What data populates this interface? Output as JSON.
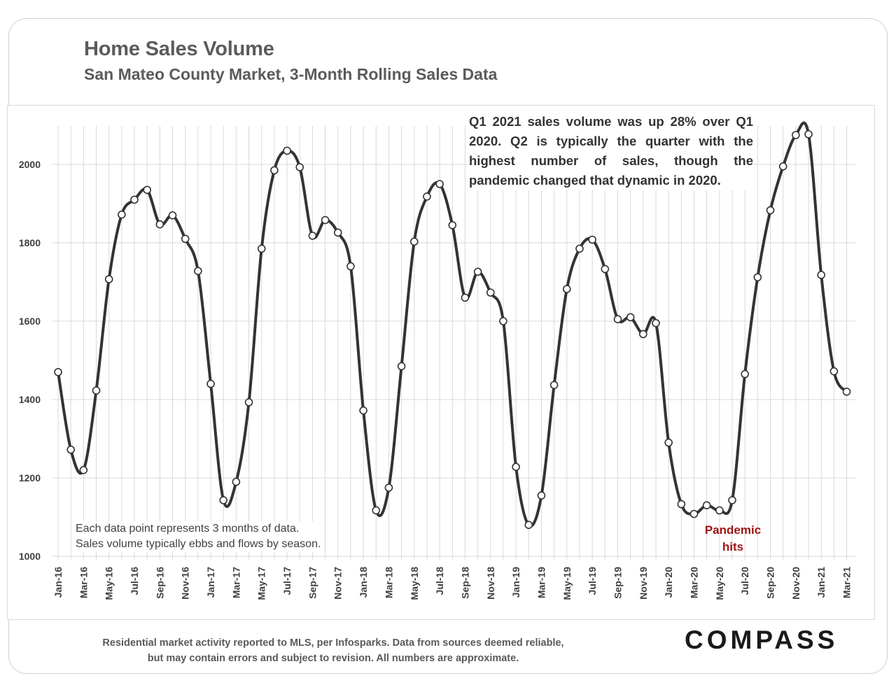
{
  "header": {
    "title": "Home Sales Volume",
    "subtitle": "San Mateo County Market, 3-Month Rolling Sales Data"
  },
  "annotations": {
    "summary": "Q1 2021 sales volume was up 28% over Q1 2020. Q2 is typically the quarter with the highest number of sales, though the pandemic changed that dynamic in 2020.",
    "note_line1": "Each data point represents 3 months of data.",
    "note_line2": "Sales volume typically ebbs and flows by season.",
    "pandemic_line1": "Pandemic",
    "pandemic_line2": "hits"
  },
  "footer": {
    "line1": "Residential market activity reported to MLS, per Infosparks. Data from sources deemed reliable,",
    "line2": "but may contain errors and subject to revision. All numbers are approximate.",
    "logo": "COMPASS"
  },
  "colors": {
    "line": "#333333",
    "grid": "#d9d9d9",
    "axis_text": "#404040",
    "pandemic": "#a01414"
  },
  "chart_data": {
    "type": "line",
    "title": "Home Sales Volume",
    "subtitle": "San Mateo County Market, 3-Month Rolling Sales Data",
    "xlabel": "",
    "ylabel": "",
    "ylim": [
      1000,
      2100
    ],
    "y_ticks": [
      1000,
      1200,
      1400,
      1600,
      1800,
      2000
    ],
    "grid": true,
    "x_tick_labels": [
      "Jan-16",
      "Mar-16",
      "May-16",
      "Jul-16",
      "Sep-16",
      "Nov-16",
      "Jan-17",
      "Mar-17",
      "May-17",
      "Jul-17",
      "Sep-17",
      "Nov-17",
      "Jan-18",
      "Mar-18",
      "May-18",
      "Jul-18",
      "Sep-18",
      "Nov-18",
      "Jan-19",
      "Mar-19",
      "May-19",
      "Jul-19",
      "Sep-19",
      "Nov-19",
      "Jan-20",
      "Mar-20",
      "May-20",
      "Jul-20",
      "Sep-20",
      "Nov-20",
      "Jan-21",
      "Mar-21"
    ],
    "series": [
      {
        "name": "3-Month Rolling Sales",
        "x": [
          "Jan-16",
          "Feb-16",
          "Mar-16",
          "Apr-16",
          "May-16",
          "Jun-16",
          "Jul-16",
          "Aug-16",
          "Sep-16",
          "Oct-16",
          "Nov-16",
          "Dec-16",
          "Jan-17",
          "Feb-17",
          "Mar-17",
          "Apr-17",
          "May-17",
          "Jun-17",
          "Jul-17",
          "Aug-17",
          "Sep-17",
          "Oct-17",
          "Nov-17",
          "Dec-17",
          "Jan-18",
          "Feb-18",
          "Mar-18",
          "Apr-18",
          "May-18",
          "Jun-18",
          "Jul-18",
          "Aug-18",
          "Sep-18",
          "Oct-18",
          "Nov-18",
          "Dec-18",
          "Jan-19",
          "Feb-19",
          "Mar-19",
          "Apr-19",
          "May-19",
          "Jun-19",
          "Jul-19",
          "Aug-19",
          "Sep-19",
          "Oct-19",
          "Nov-19",
          "Dec-19",
          "Jan-20",
          "Feb-20",
          "Mar-20",
          "Apr-20",
          "May-20",
          "Jun-20",
          "Jul-20",
          "Aug-20",
          "Sep-20",
          "Oct-20",
          "Nov-20",
          "Dec-20",
          "Jan-21",
          "Feb-21",
          "Mar-21"
        ],
        "values": [
          1470,
          1272,
          1220,
          1423,
          1707,
          1872,
          1910,
          1935,
          1847,
          1870,
          1810,
          1728,
          1440,
          1143,
          1190,
          1393,
          1785,
          1985,
          2035,
          1993,
          1818,
          1858,
          1826,
          1740,
          1372,
          1117,
          1175,
          1485,
          1803,
          1918,
          1950,
          1845,
          1660,
          1726,
          1673,
          1600,
          1228,
          1080,
          1155,
          1437,
          1682,
          1785,
          1808,
          1733,
          1605,
          1610,
          1567,
          1595,
          1290,
          1133,
          1108,
          1130,
          1117,
          1143,
          1465,
          1712,
          1883,
          1995,
          2075,
          2077,
          1718,
          1472,
          1420
        ]
      }
    ]
  }
}
